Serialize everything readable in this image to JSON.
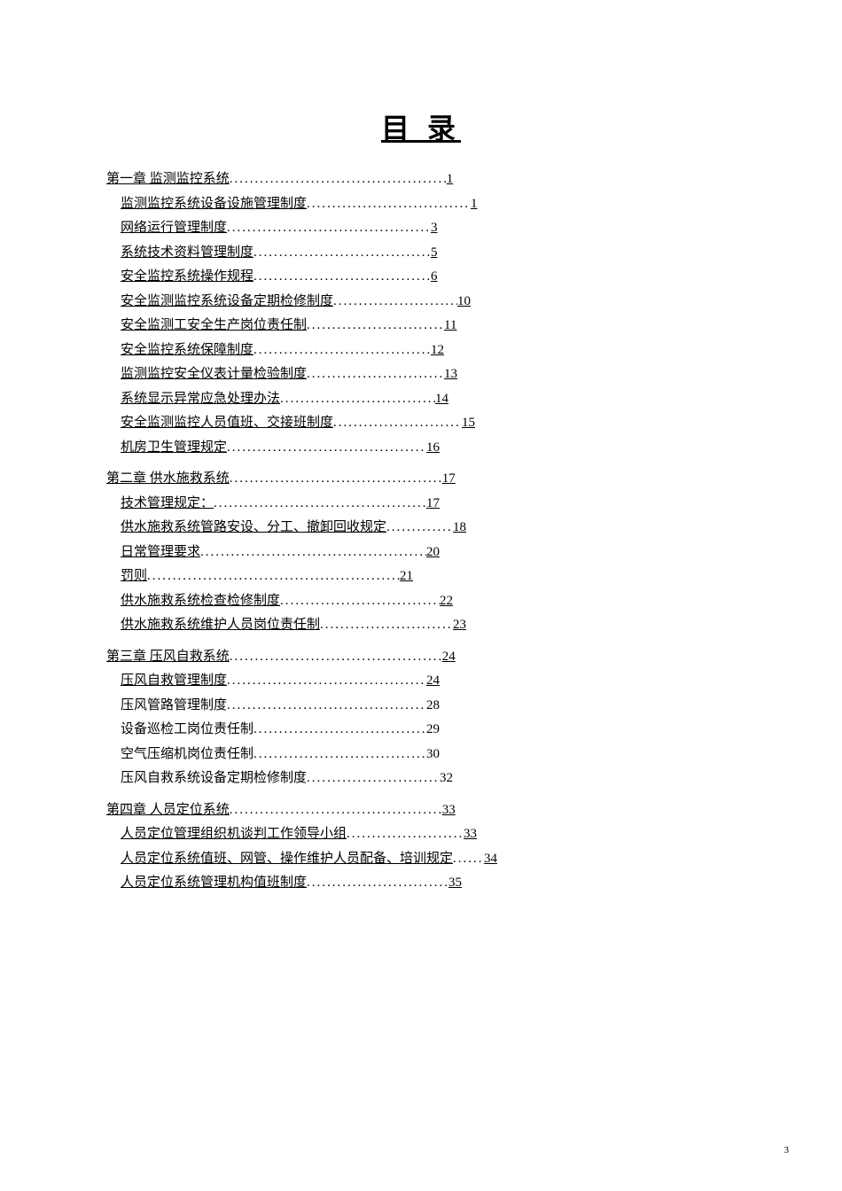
{
  "title": "目 录",
  "footerPage": "3",
  "chapters": [
    {
      "label": "第一章 监测监控系统",
      "page": "1",
      "underlined": true,
      "items": [
        {
          "label": "监测监控系统设备设施管理制度",
          "page": "1",
          "underlined": true
        },
        {
          "label": "网络运行管理制度",
          "page": "3",
          "underlined": true
        },
        {
          "label": "系统技术资料管理制度",
          "page": "5",
          "underlined": true
        },
        {
          "label": "安全监控系统操作规程",
          "page": "6",
          "underlined": true
        },
        {
          "label": "安全监测监控系统设备定期检修制度",
          "page": "10",
          "underlined": true
        },
        {
          "label": "安全监测工安全生产岗位责任制",
          "page": "11",
          "underlined": true
        },
        {
          "label": "安全监控系统保障制度",
          "page": "12",
          "underlined": true
        },
        {
          "label": "监测监控安全仪表计量检验制度",
          "page": "13",
          "underlined": true
        },
        {
          "label": "系统显示异常应急处理办法",
          "page": "14",
          "underlined": true
        },
        {
          "label": "安全监测监控人员值班、交接班制度",
          "page": "15",
          "underlined": true
        },
        {
          "label": "机房卫生管理规定",
          "page": "16",
          "underlined": true
        }
      ]
    },
    {
      "label": "第二章 供水施救系统",
      "page": "17",
      "underlined": true,
      "items": [
        {
          "label": "技术管理规定：",
          "page": "17",
          "underlined": true
        },
        {
          "label": "供水施救系统管路安设、分工、撤卸回收规定",
          "page": "18",
          "underlined": true
        },
        {
          "label": "日常管理要求",
          "page": "20",
          "underlined": true
        },
        {
          "label": "罚则",
          "page": "21",
          "underlined": true
        },
        {
          "label": "供水施救系统检查检修制度",
          "page": "22",
          "underlined": true
        },
        {
          "label": "供水施救系统维护人员岗位责任制",
          "page": "23",
          "underlined": true
        }
      ]
    },
    {
      "label": "第三章 压风自救系统",
      "page": "24",
      "underlined": true,
      "items": [
        {
          "label": "压风自救管理制度",
          "page": "24",
          "underlined": true
        },
        {
          "label": "压风管路管理制度",
          "page": "28",
          "underlined": false
        },
        {
          "label": "设备巡检工岗位责任制",
          "page": "29",
          "underlined": false
        },
        {
          "label": "空气压缩机岗位责任制",
          "page": "30",
          "underlined": false
        },
        {
          "label": "压风自救系统设备定期检修制度",
          "page": "32",
          "underlined": false
        }
      ]
    },
    {
      "label": "第四章 人员定位系统",
      "page": "33",
      "underlined": true,
      "items": [
        {
          "label": "人员定位管理组织机谈判工作领导小组",
          "page": "33",
          "underlined": true
        },
        {
          "label": "人员定位系统值班、网管、操作维护人员配备、培训规定",
          "page": "34",
          "underlined": true
        },
        {
          "label": "人员定位系统管理机构值班制度",
          "page": "35",
          "underlined": true
        }
      ]
    }
  ],
  "leaderWidths": {
    "c0": 245,
    "c0i0": 185,
    "c0i1": 230,
    "c0i2": 200,
    "c0i3": 200,
    "c0i4": 140,
    "c0i5": 155,
    "c0i6": 200,
    "c0i7": 155,
    "c0i8": 175,
    "c0i9": 145,
    "c0i10": 225,
    "c1": 240,
    "c1i0": 240,
    "c1i1": 75,
    "c1i2": 255,
    "c1i3": 285,
    "c1i4": 180,
    "c1i5": 150,
    "c2": 240,
    "c2i0": 225,
    "c2i1": 225,
    "c2i2": 195,
    "c2i3": 195,
    "c2i4": 150,
    "c3": 240,
    "c3i0": 132,
    "c3i1": 35,
    "c3i2": 160
  }
}
